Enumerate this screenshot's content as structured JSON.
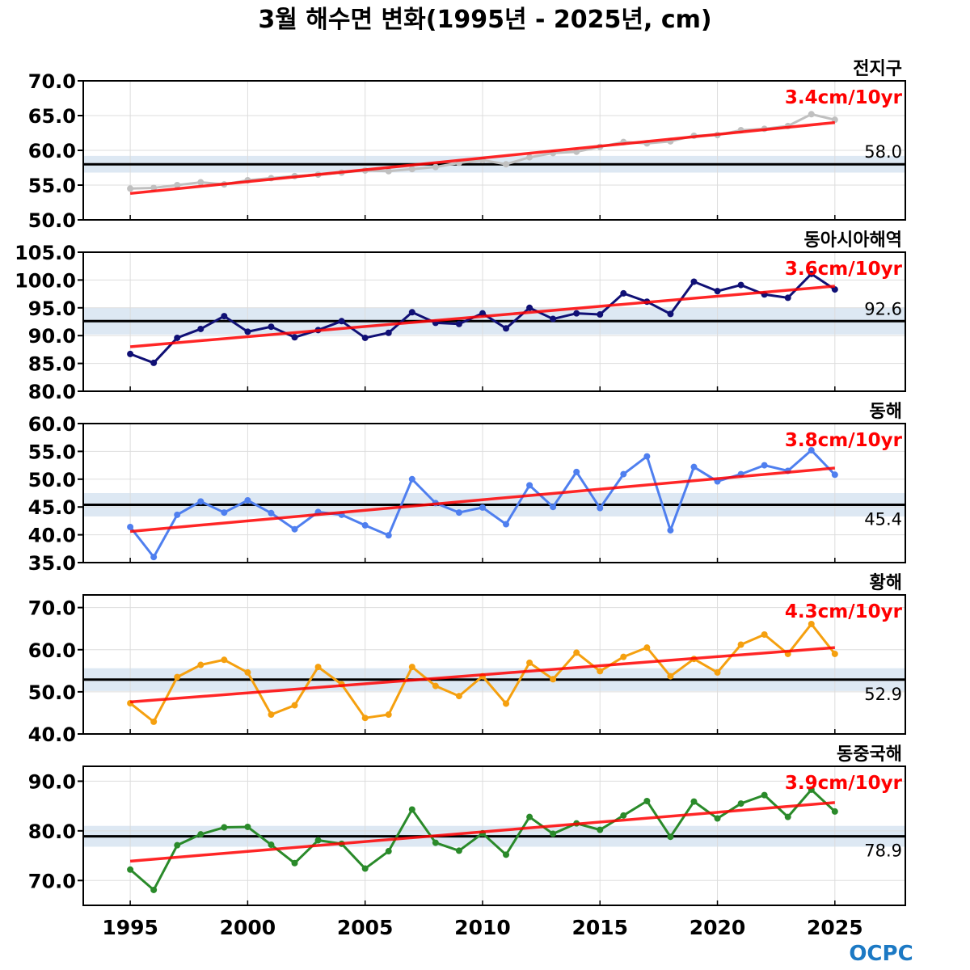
{
  "title": "3월 해수면 변화(1995년 - 2025년, cm)",
  "logo": "OCPC",
  "colors": {
    "trend": "#ff0000",
    "mean_line": "#000000",
    "band": "#dde8f3",
    "grid": "#dddddd"
  },
  "chart_data": [
    {
      "type": "line",
      "name": "전지구",
      "trend_label": "3.4cm/10yr",
      "mean": 58.0,
      "mean_label": "58.0",
      "mean_label_position": "above",
      "band": [
        56.8,
        59.2
      ],
      "ylim": [
        50,
        70
      ],
      "yticks": [
        50,
        55,
        60,
        65,
        70
      ],
      "ytick_labels": [
        "50.0",
        "55.0",
        "60.0",
        "65.0",
        "70.0"
      ],
      "color": "#c0c0c0",
      "x": [
        1995,
        1996,
        1997,
        1998,
        1999,
        2000,
        2001,
        2002,
        2003,
        2004,
        2005,
        2006,
        2007,
        2008,
        2009,
        2010,
        2011,
        2012,
        2013,
        2014,
        2015,
        2016,
        2017,
        2018,
        2019,
        2020,
        2021,
        2022,
        2023,
        2024,
        2025
      ],
      "values": [
        54.5,
        54.6,
        55.0,
        55.4,
        55.1,
        55.7,
        56.0,
        56.3,
        56.5,
        56.8,
        57.1,
        57.0,
        57.3,
        57.6,
        58.2,
        58.6,
        58.0,
        59.0,
        59.6,
        59.8,
        60.5,
        61.2,
        61.0,
        61.3,
        62.1,
        62.2,
        62.9,
        63.1,
        63.5,
        65.2,
        64.4
      ],
      "trend": [
        53.8,
        64.0
      ]
    },
    {
      "type": "line",
      "name": "동아시아해역",
      "trend_label": "3.6cm/10yr",
      "mean": 92.6,
      "mean_label": "92.6",
      "mean_label_position": "above",
      "band": [
        90.2,
        95.0
      ],
      "ylim": [
        80,
        105
      ],
      "yticks": [
        80,
        85,
        90,
        95,
        100,
        105
      ],
      "ytick_labels": [
        "80.0",
        "85.0",
        "90.0",
        "95.0",
        "100.0",
        "105.0"
      ],
      "color": "#101075",
      "x": [
        1995,
        1996,
        1997,
        1998,
        1999,
        2000,
        2001,
        2002,
        2003,
        2004,
        2005,
        2006,
        2007,
        2008,
        2009,
        2010,
        2011,
        2012,
        2013,
        2014,
        2015,
        2016,
        2017,
        2018,
        2019,
        2020,
        2021,
        2022,
        2023,
        2024,
        2025
      ],
      "values": [
        86.7,
        85.1,
        89.6,
        91.2,
        93.5,
        90.7,
        91.6,
        89.7,
        91.0,
        92.6,
        89.6,
        90.5,
        94.2,
        92.3,
        92.1,
        94.0,
        91.3,
        95.0,
        93.0,
        94.0,
        93.8,
        97.6,
        96.1,
        93.9,
        99.7,
        98.0,
        99.1,
        97.4,
        96.8,
        101.1,
        98.3
      ],
      "trend": [
        88.0,
        98.9
      ]
    },
    {
      "type": "line",
      "name": "동해",
      "trend_label": "3.8cm/10yr",
      "mean": 45.4,
      "mean_label": "45.4",
      "mean_label_position": "below",
      "band": [
        43.3,
        47.5
      ],
      "ylim": [
        35,
        60
      ],
      "yticks": [
        35,
        40,
        45,
        50,
        55,
        60
      ],
      "ytick_labels": [
        "35.0",
        "40.0",
        "45.0",
        "50.0",
        "55.0",
        "60.0"
      ],
      "color": "#4f7fef",
      "x": [
        1995,
        1996,
        1997,
        1998,
        1999,
        2000,
        2001,
        2002,
        2003,
        2004,
        2005,
        2006,
        2007,
        2008,
        2009,
        2010,
        2011,
        2012,
        2013,
        2014,
        2015,
        2016,
        2017,
        2018,
        2019,
        2020,
        2021,
        2022,
        2023,
        2024,
        2025
      ],
      "values": [
        41.4,
        36.0,
        43.6,
        46.0,
        44.0,
        46.2,
        43.9,
        41.0,
        44.1,
        43.6,
        41.7,
        39.9,
        50.0,
        45.7,
        44.0,
        44.9,
        41.9,
        48.9,
        45.0,
        51.3,
        44.8,
        50.9,
        54.1,
        40.8,
        52.2,
        49.6,
        50.9,
        52.5,
        51.5,
        55.2,
        50.8
      ],
      "trend": [
        40.6,
        52.0
      ]
    },
    {
      "type": "line",
      "name": "황해",
      "trend_label": "4.3cm/10yr",
      "mean": 52.9,
      "mean_label": "52.9",
      "mean_label_position": "below",
      "band": [
        50.2,
        55.6
      ],
      "ylim": [
        40,
        73
      ],
      "yticks": [
        40,
        50,
        60,
        70
      ],
      "ytick_labels": [
        "40.0",
        "50.0",
        "60.0",
        "70.0"
      ],
      "color": "#f5a00f",
      "x": [
        1995,
        1996,
        1997,
        1998,
        1999,
        2000,
        2001,
        2002,
        2003,
        2004,
        2005,
        2006,
        2007,
        2008,
        2009,
        2010,
        2011,
        2012,
        2013,
        2014,
        2015,
        2016,
        2017,
        2018,
        2019,
        2020,
        2021,
        2022,
        2023,
        2024,
        2025
      ],
      "values": [
        47.3,
        42.9,
        53.5,
        56.4,
        57.6,
        54.6,
        44.6,
        46.8,
        55.9,
        51.8,
        43.8,
        44.6,
        55.9,
        51.4,
        49.0,
        53.7,
        47.2,
        56.9,
        53.0,
        59.3,
        54.9,
        58.3,
        60.5,
        53.7,
        57.8,
        54.6,
        61.2,
        63.6,
        59.0,
        66.1,
        59.0
      ],
      "trend": [
        47.6,
        60.5
      ]
    },
    {
      "type": "line",
      "name": "동중국해",
      "trend_label": "3.9cm/10yr",
      "mean": 78.9,
      "mean_label": "78.9",
      "mean_label_position": "below",
      "band": [
        76.8,
        81.0
      ],
      "ylim": [
        65,
        93
      ],
      "yticks": [
        70,
        80,
        90
      ],
      "ytick_labels": [
        "70.0",
        "80.0",
        "90.0"
      ],
      "color": "#2a8a2a",
      "x": [
        1995,
        1996,
        1997,
        1998,
        1999,
        2000,
        2001,
        2002,
        2003,
        2004,
        2005,
        2006,
        2007,
        2008,
        2009,
        2010,
        2011,
        2012,
        2013,
        2014,
        2015,
        2016,
        2017,
        2018,
        2019,
        2020,
        2021,
        2022,
        2023,
        2024,
        2025
      ],
      "values": [
        72.2,
        68.1,
        77.1,
        79.3,
        80.7,
        80.8,
        77.2,
        73.5,
        78.1,
        77.4,
        72.4,
        75.9,
        84.3,
        77.6,
        76.0,
        79.5,
        75.2,
        82.8,
        79.4,
        81.5,
        80.2,
        83.1,
        86.0,
        78.8,
        85.9,
        82.5,
        85.5,
        87.2,
        82.8,
        88.3,
        83.9
      ],
      "trend": [
        73.9,
        85.7
      ]
    }
  ],
  "xaxis": {
    "xlim": [
      1993,
      2028
    ],
    "ticks": [
      1995,
      2000,
      2005,
      2010,
      2015,
      2020,
      2025
    ],
    "tick_labels": [
      "1995",
      "2000",
      "2005",
      "2010",
      "2015",
      "2020",
      "2025"
    ]
  }
}
